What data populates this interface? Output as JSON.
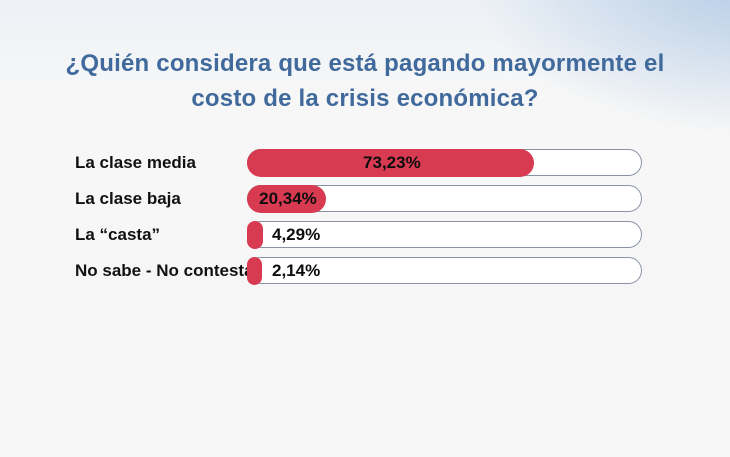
{
  "page": {
    "background_base": "#f6f6f6",
    "background_tint": "#b3cbe5"
  },
  "header": {
    "title": "¿Quién considera que está pagando mayormente el costo de la crisis económica?",
    "title_color": "#40699c"
  },
  "chart_data": {
    "type": "bar",
    "orientation": "horizontal",
    "title": "¿Quién considera que está pagando mayormente el costo de la crisis económica?",
    "categories": [
      "La clase media",
      "La clase baja",
      "La “casta”",
      "No sabe - No contesta"
    ],
    "values": [
      73.23,
      20.34,
      4.29,
      2.14
    ],
    "value_labels": [
      "73,23%",
      "20,34%",
      "4,29%",
      "2,14%"
    ],
    "xlim": [
      0,
      100
    ],
    "grid": false,
    "legend": false,
    "bar_color": "#d83a52",
    "track_fill": "#ffffff",
    "track_border_color": "#8a93a6",
    "label_color": "#111111",
    "value_color": "#0d0d0d",
    "value_inside_threshold": 15
  }
}
